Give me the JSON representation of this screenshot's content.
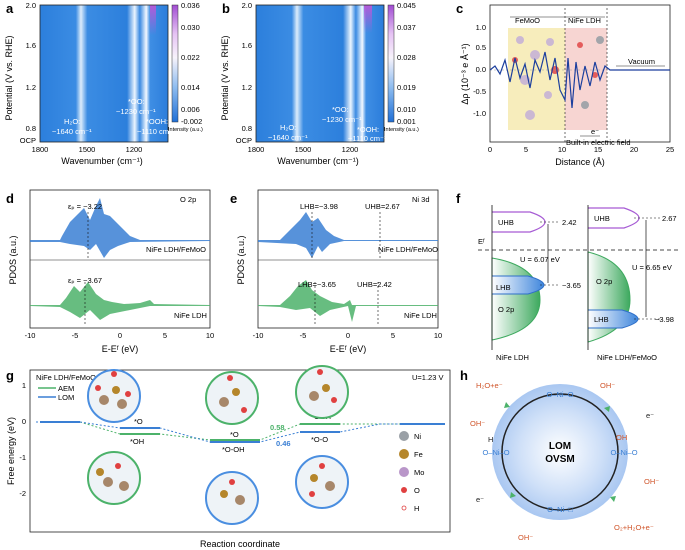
{
  "panels": {
    "a": {
      "label": "a",
      "ylabel": "Potential (V vs. RHE)",
      "xlabel": "Wavenumber (cm⁻¹)",
      "yticks": [
        "0.8",
        "1.2",
        "1.6",
        "2.0"
      ],
      "ocp": "OCP",
      "xticks": [
        "1800",
        "1500",
        "1200"
      ],
      "ann_h2o_1": "H₂O:",
      "ann_h2o_2": "~1640 cm⁻¹",
      "ann_oo_1": "*OO:",
      "ann_oo_2": "~1230 cm⁻¹",
      "ann_ooh_1": "*OOH:",
      "ann_ooh_2": "~1110 cm⁻¹",
      "cbar_ticks": [
        "0.036",
        "0.030",
        "0.022",
        "0.014",
        "0.006",
        "-0.002"
      ],
      "cbar_label": "Intensity (a.u.)"
    },
    "b": {
      "label": "b",
      "ylabel": "Potential (V vs. RHE)",
      "xlabel": "Wavenumber (cm⁻¹)",
      "yticks": [
        "0.8",
        "1.2",
        "1.6",
        "2.0"
      ],
      "ocp": "OCP",
      "xticks": [
        "1800",
        "1500",
        "1200"
      ],
      "ann_h2o_1": "H₂O:",
      "ann_h2o_2": "~1640 cm⁻¹",
      "ann_oo_1": "*OO:",
      "ann_oo_2": "~1230 cm⁻¹",
      "ann_ooh_1": "*OOH:",
      "ann_ooh_2": "~1110 cm⁻¹",
      "cbar_ticks": [
        "0.045",
        "0.037",
        "0.028",
        "0.019",
        "0.010",
        "0.001"
      ],
      "cbar_label": "Intensity (a.u.)"
    },
    "c": {
      "label": "c",
      "ylabel": "Δρ (10⁻³ e Å⁻¹)",
      "xlabel": "Distance (Å)",
      "yticks": [
        "-1.0",
        "-0.5",
        "0.0",
        "0.5",
        "1.0"
      ],
      "xticks": [
        "0",
        "5",
        "10",
        "15",
        "20",
        "25"
      ],
      "region1": "FeMoO",
      "region2": "NiFe LDH",
      "region3": "Vacuum",
      "electron": "e⁻",
      "field": "Built-in electric field"
    },
    "d": {
      "label": "d",
      "ylabel": "PDOS (a.u.)",
      "xlabel": "E-Eᶠ (eV)",
      "xticks": [
        "-10",
        "-5",
        "0",
        "5",
        "10"
      ],
      "orbital": "O 2p",
      "ep_top": "εₚ = −3.22",
      "ep_bot": "εₚ = −3.67",
      "name_top": "NiFe LDH/FeMoO",
      "name_bot": "NiFe LDH"
    },
    "e": {
      "label": "e",
      "ylabel": "PDOS (a.u.)",
      "xlabel": "E-Eᶠ (eV)",
      "xticks": [
        "-10",
        "-5",
        "0",
        "5",
        "10"
      ],
      "orbital": "Ni 3d",
      "lhb_top": "LHB=−3.98",
      "uhb_top": "UHB=2.67",
      "lhb_bot": "LHB=−3.65",
      "uhb_bot": "UHB=2.42",
      "name_top": "NiFe LDH/FeMoO",
      "name_bot": "NiFe LDH"
    },
    "f": {
      "label": "f",
      "ef": "Eᶠ",
      "uhb": "UHB",
      "lhb": "LHB",
      "o2p": "O 2p",
      "left_uhb_val": "2.42",
      "left_lhb_val": "−3.65",
      "left_u": "U = 6.07 eV",
      "right_uhb_val": "2.67",
      "right_lhb_val": "−3.98",
      "right_u": "U = 6.65 eV",
      "left_name": "NiFe LDH",
      "right_name": "NiFe LDH/FeMoO"
    },
    "g": {
      "label": "g",
      "ylabel": "Free energy (eV)",
      "xlabel": "Reaction coordinate",
      "yticks": [
        "1",
        "0",
        "-1",
        "-2"
      ],
      "legend_title": "NiFe LDH/FeMoO",
      "legend_aem": "AEM",
      "legend_lom": "LOM",
      "potential": "U=1.23 V",
      "step_o": "*O",
      "step_oh": "*OH",
      "step_o2": "*O",
      "step_ooh": "*OOH",
      "step_ooh2": "*O-OH",
      "step_oo": "*O-O",
      "val_aem": "0.58",
      "val_lom": "0.46",
      "legend_ni": "Ni",
      "legend_fe": "Fe",
      "legend_mo": "Mo",
      "legend_oatom": "O",
      "legend_h": "H"
    },
    "h": {
      "label": "h",
      "center1": "LOM",
      "center2": "OVSM",
      "top": "O–Ni–O",
      "top_left": "H₂O+e⁻",
      "top_oh": "OH⁻",
      "right_e": "e⁻",
      "right": "O–Ni–O",
      "right_oh": "OH",
      "right_oh2": "OH⁻",
      "bottom": "O–Ni–□",
      "bottom_right": "O₂+H₂O+e⁻",
      "bottom_oh": "OH⁻",
      "left": "O–Ni–O",
      "left_h": "H",
      "left_oh": "OH⁻",
      "left_e": "e⁻"
    }
  },
  "colors": {
    "blue": "#3a7fd4",
    "green": "#4cb26a",
    "purple": "#b15fd8"
  }
}
